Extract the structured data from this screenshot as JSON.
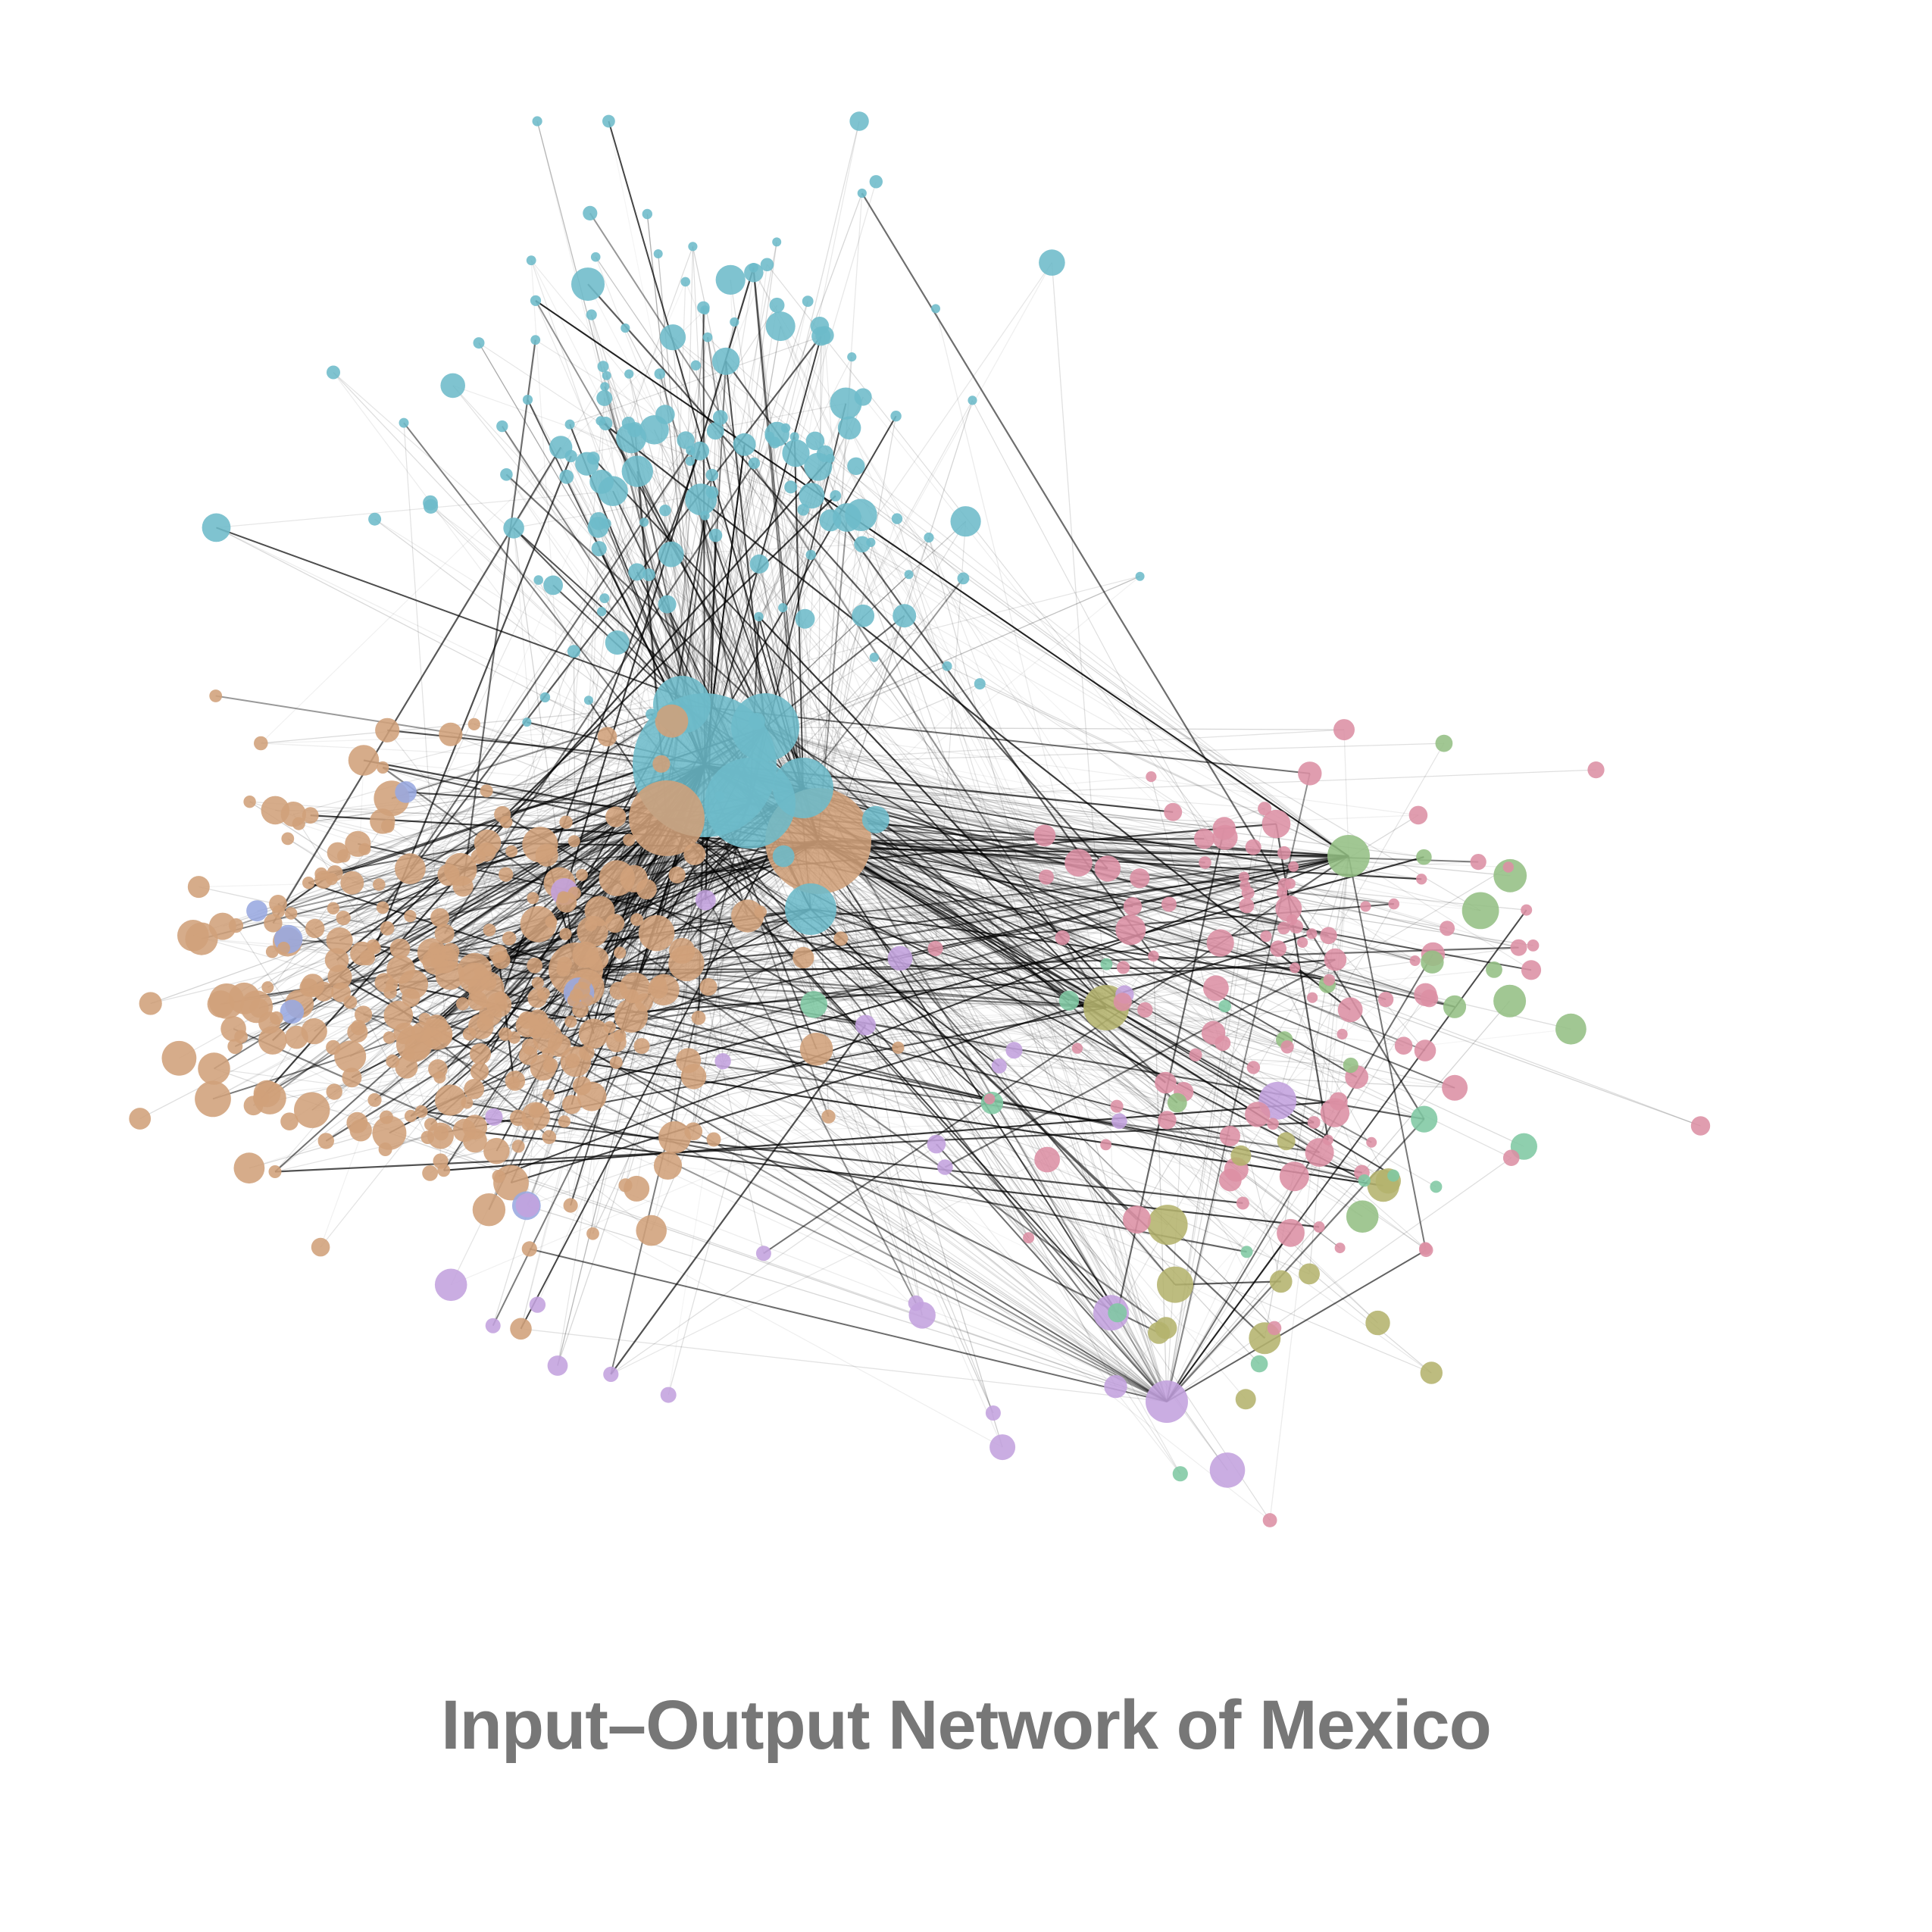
{
  "title": "Input–Output Network of Mexico",
  "colors": {
    "background": "#ffffff",
    "title": "#777777",
    "edge": "#000000",
    "communities": [
      "#6dbbc9",
      "#d0a07a",
      "#dc8fa4",
      "#c3a2de",
      "#94bf84",
      "#b4b36d",
      "#7fc8a3",
      "#98a8e0"
    ]
  },
  "diagram": {
    "type": "network",
    "community_count": 8
  }
}
